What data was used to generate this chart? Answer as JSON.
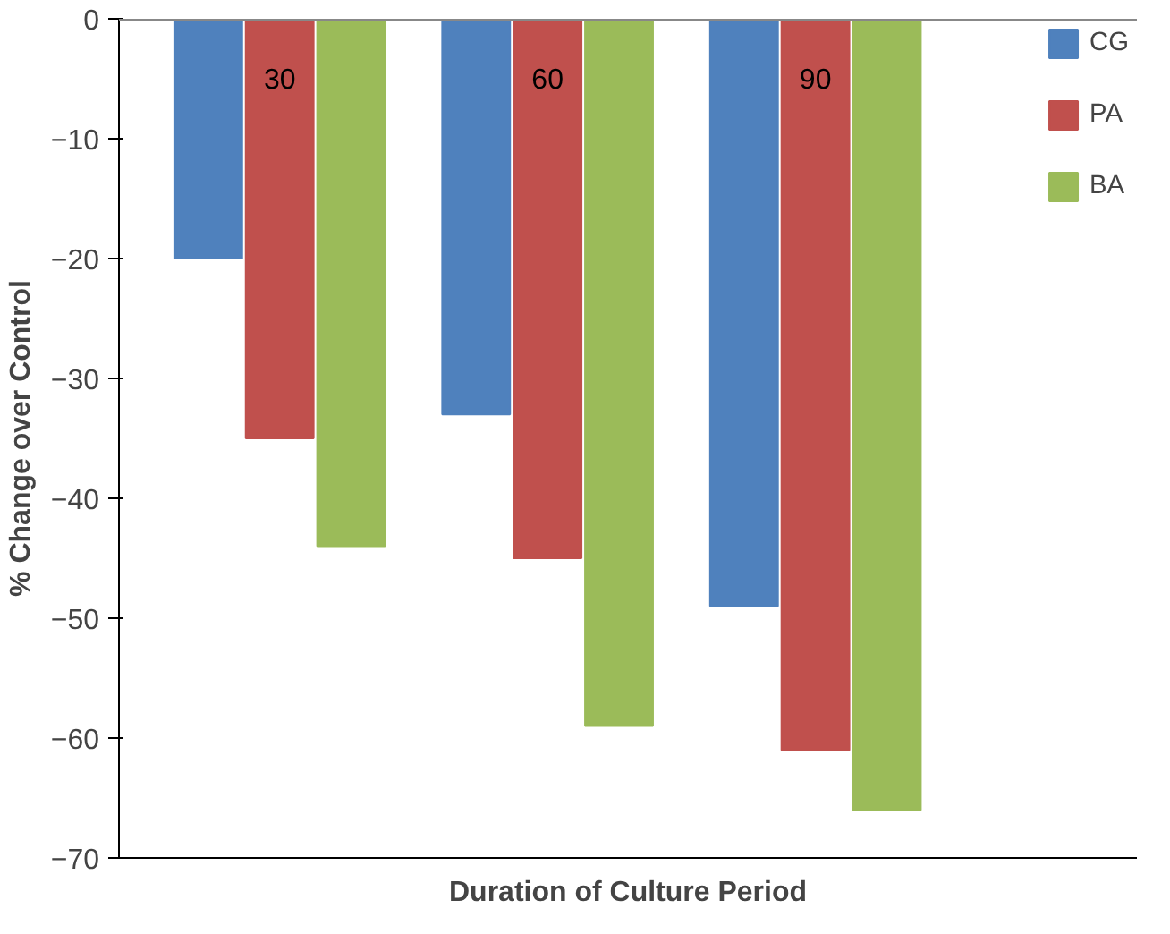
{
  "chart_data": {
    "type": "bar",
    "xlabel": "Duration of Culture Period",
    "ylabel": "% Change over Control",
    "categories": [
      "30",
      "60",
      "90"
    ],
    "series": [
      {
        "name": "CG",
        "color": "#4f81bd",
        "values": [
          -20,
          -33,
          -49
        ]
      },
      {
        "name": "PA",
        "color": "#c0504d",
        "values": [
          -35,
          -45,
          -61
        ]
      },
      {
        "name": "BA",
        "color": "#9bbb59",
        "values": [
          -44,
          -59,
          -66
        ]
      }
    ],
    "ylim": [
      -70,
      0
    ],
    "yticks": [
      0,
      -10,
      -20,
      -30,
      -40,
      -50,
      -60,
      -70
    ],
    "grid": false,
    "legend": "right",
    "tick_labels": "y"
  }
}
